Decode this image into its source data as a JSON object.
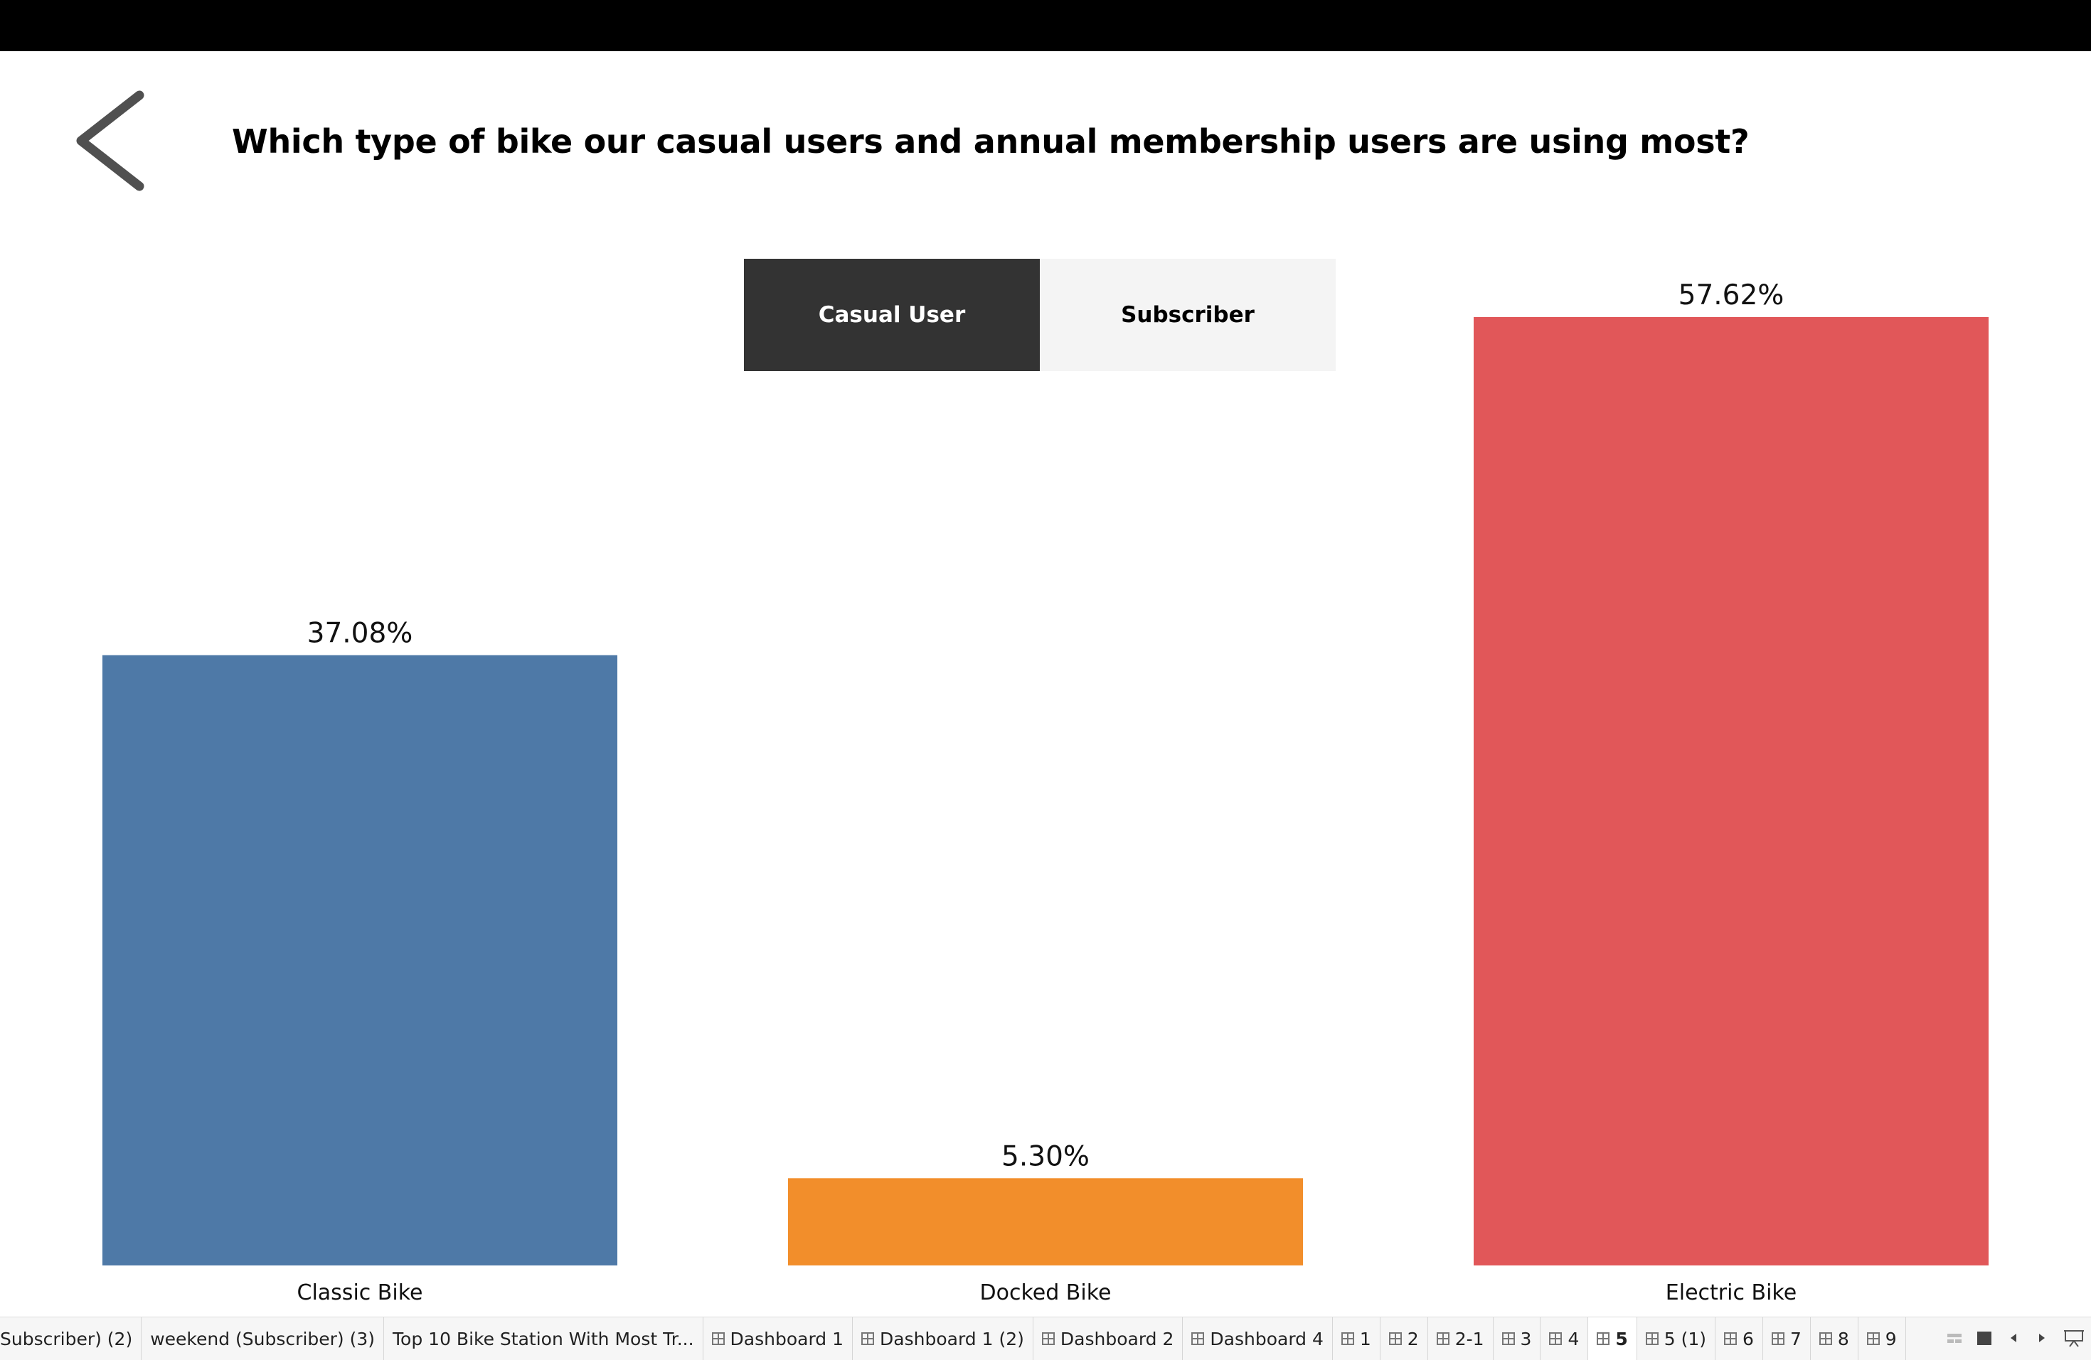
{
  "title": "Which type of bike our casual users and annual membership users are  using most?",
  "toggle": {
    "options": [
      "Casual User",
      "Subscriber"
    ],
    "selected": "Casual User"
  },
  "chart_data": {
    "type": "bar",
    "categories": [
      "Classic Bike",
      "Docked Bike",
      "Electric Bike"
    ],
    "values": [
      37.08,
      5.3,
      57.62
    ],
    "value_labels": [
      "37.08%",
      "5.30%",
      "57.62%"
    ],
    "colors": [
      "#4e79a7",
      "#f28e2b",
      "#e15759"
    ],
    "ylim": [
      0,
      57.62
    ],
    "grid": false,
    "legend": "none"
  },
  "tabs": [
    {
      "label": "Subscriber) (2)",
      "icon": "none"
    },
    {
      "label": "weekend (Subscriber) (3)",
      "icon": "none"
    },
    {
      "label": "Top 10 Bike Station With Most Tr...",
      "icon": "none"
    },
    {
      "label": "Dashboard 1",
      "icon": "dashboard-icon"
    },
    {
      "label": "Dashboard 1 (2)",
      "icon": "dashboard-icon"
    },
    {
      "label": "Dashboard 2",
      "icon": "dashboard-icon"
    },
    {
      "label": "Dashboard 4",
      "icon": "dashboard-icon"
    },
    {
      "label": "1",
      "icon": "dashboard-icon"
    },
    {
      "label": "2",
      "icon": "dashboard-icon"
    },
    {
      "label": "2-1",
      "icon": "dashboard-icon"
    },
    {
      "label": "3",
      "icon": "dashboard-icon"
    },
    {
      "label": "4",
      "icon": "dashboard-icon"
    },
    {
      "label": "5",
      "icon": "dashboard-icon",
      "active": true
    },
    {
      "label": "5 (1)",
      "icon": "dashboard-icon"
    },
    {
      "label": "6",
      "icon": "dashboard-icon"
    },
    {
      "label": "7",
      "icon": "dashboard-icon"
    },
    {
      "label": "8",
      "icon": "dashboard-icon"
    },
    {
      "label": "9",
      "icon": "dashboard-icon"
    }
  ],
  "tab_controls": [
    "sheet-sorter-icon",
    "filmstrip-icon",
    "prev-sheet-icon",
    "next-sheet-icon",
    "presentation-icon"
  ]
}
